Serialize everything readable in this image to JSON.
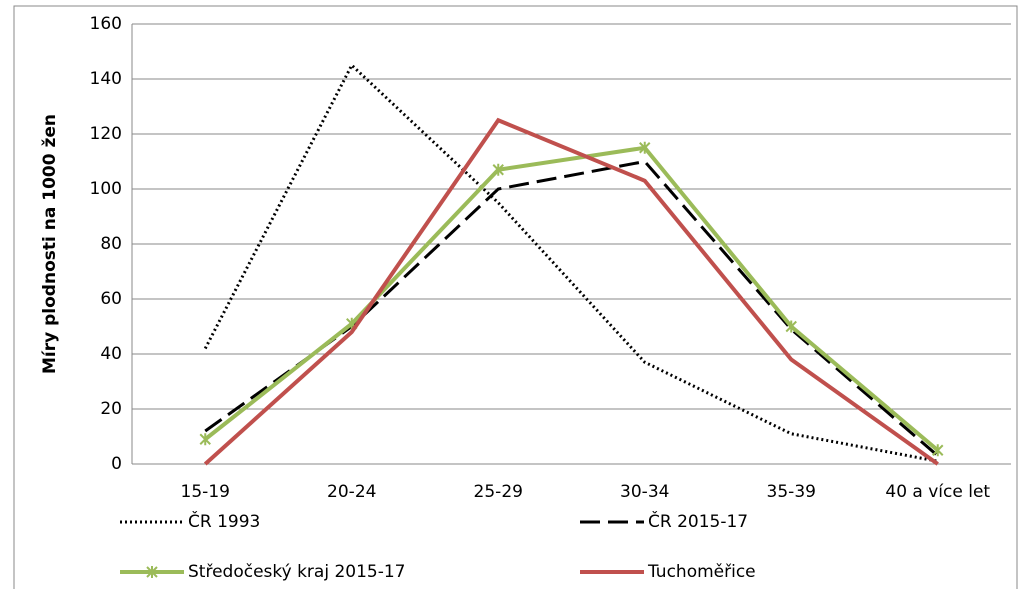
{
  "chart_data": {
    "type": "line",
    "ylabel": "Míry plodnosti na 1000 žen",
    "categories": [
      "15-19",
      "20-24",
      "25-29",
      "30-34",
      "35-39",
      "40 a více let"
    ],
    "series": [
      {
        "name": "ČR 1993",
        "color": "#000000",
        "dash": "dotted",
        "values": [
          42,
          145,
          95,
          37,
          11,
          1
        ]
      },
      {
        "name": "ČR 2015-17",
        "color": "#000000",
        "dash": "dashed",
        "values": [
          12,
          50,
          100,
          110,
          49,
          3
        ]
      },
      {
        "name": "Středočeský kraj 2015-17",
        "color": "#9bbb59",
        "dash": "solid",
        "marker": "asterisk",
        "values": [
          9,
          51,
          107,
          115,
          50,
          5
        ]
      },
      {
        "name": "Tuchoměřice",
        "color": "#c0504d",
        "dash": "solid",
        "values": [
          0,
          48,
          125,
          103,
          38,
          0
        ]
      }
    ],
    "ylim": [
      0,
      160
    ],
    "yticks": [
      0,
      20,
      40,
      60,
      80,
      100,
      120,
      140,
      160
    ],
    "grid": true,
    "legend": "bottom"
  }
}
